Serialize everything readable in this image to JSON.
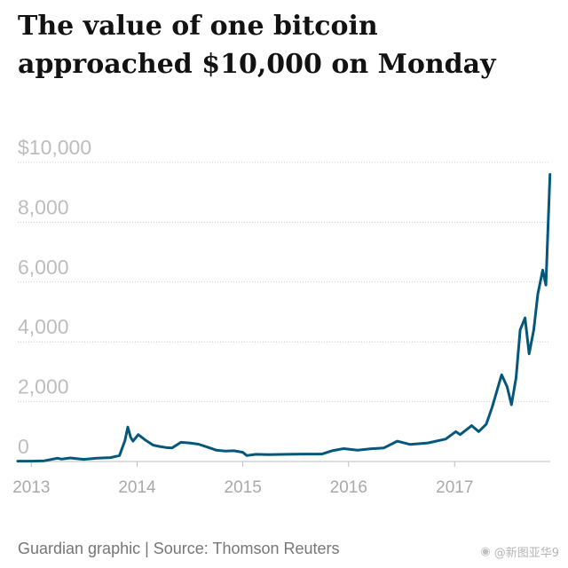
{
  "header": {
    "title": "The value of one bitcoin approached $10,000 on Monday"
  },
  "footer": {
    "source": "Guardian graphic | Source: Thomson Reuters"
  },
  "watermark": {
    "icon": "weibo-icon",
    "text": "@新图亚华9"
  },
  "colors": {
    "line": "#05577c",
    "axis_text": "#bdbdbd",
    "gridline": "#cccccc",
    "title": "#121212"
  },
  "chart_data": {
    "type": "line",
    "title": "The value of one bitcoin approached $10,000 on Monday",
    "xlabel": "",
    "ylabel": "",
    "ylim": [
      0,
      10000
    ],
    "xlim": [
      "2012-11-15",
      "2017-11-27"
    ],
    "y_ticks": [
      {
        "value": 0,
        "label": "0"
      },
      {
        "value": 2000,
        "label": "2,000"
      },
      {
        "value": 4000,
        "label": "4,000"
      },
      {
        "value": 6000,
        "label": "6,000"
      },
      {
        "value": 8000,
        "label": "8,000"
      },
      {
        "value": 10000,
        "label": "$10,000"
      }
    ],
    "x_ticks": [
      {
        "value": "2013-01-01",
        "label": "2013"
      },
      {
        "value": "2014-01-01",
        "label": "2014"
      },
      {
        "value": "2015-01-01",
        "label": "2015"
      },
      {
        "value": "2016-01-01",
        "label": "2016"
      },
      {
        "value": "2017-01-01",
        "label": "2017"
      }
    ],
    "grid": "horizontal-dotted",
    "legend": "none",
    "series": [
      {
        "x": [
          "2012-11-15",
          "2013-01-01",
          "2013-02-15",
          "2013-04-01",
          "2013-04-15",
          "2013-05-15",
          "2013-07-01",
          "2013-08-15",
          "2013-10-01",
          "2013-11-01",
          "2013-11-20",
          "2013-11-30",
          "2013-12-10",
          "2013-12-18",
          "2014-01-05",
          "2014-02-01",
          "2014-02-25",
          "2014-03-20",
          "2014-04-10",
          "2014-05-01",
          "2014-06-01",
          "2014-07-01",
          "2014-08-01",
          "2014-09-01",
          "2014-10-01",
          "2014-11-01",
          "2014-12-01",
          "2015-01-01",
          "2015-01-14",
          "2015-02-15",
          "2015-04-01",
          "2015-06-01",
          "2015-08-01",
          "2015-10-01",
          "2015-11-05",
          "2015-12-15",
          "2016-02-01",
          "2016-03-15",
          "2016-05-01",
          "2016-06-17",
          "2016-08-01",
          "2016-10-01",
          "2016-12-01",
          "2017-01-05",
          "2017-01-20",
          "2017-03-01",
          "2017-03-25",
          "2017-04-20",
          "2017-05-10",
          "2017-05-25",
          "2017-06-12",
          "2017-07-01",
          "2017-07-16",
          "2017-08-01",
          "2017-08-15",
          "2017-09-01",
          "2017-09-15",
          "2017-10-01",
          "2017-10-15",
          "2017-11-01",
          "2017-11-12",
          "2017-11-20",
          "2017-11-26"
        ],
        "values": [
          12,
          13,
          25,
          110,
          80,
          120,
          70,
          110,
          130,
          200,
          700,
          1150,
          800,
          680,
          900,
          700,
          550,
          500,
          470,
          450,
          640,
          620,
          580,
          480,
          380,
          350,
          360,
          310,
          200,
          240,
          230,
          240,
          250,
          250,
          360,
          430,
          380,
          420,
          450,
          680,
          570,
          620,
          750,
          1000,
          900,
          1200,
          1000,
          1250,
          1800,
          2300,
          2900,
          2500,
          1900,
          2800,
          4400,
          4800,
          3600,
          4400,
          5600,
          6400,
          5900,
          8000,
          9600
        ]
      }
    ]
  }
}
